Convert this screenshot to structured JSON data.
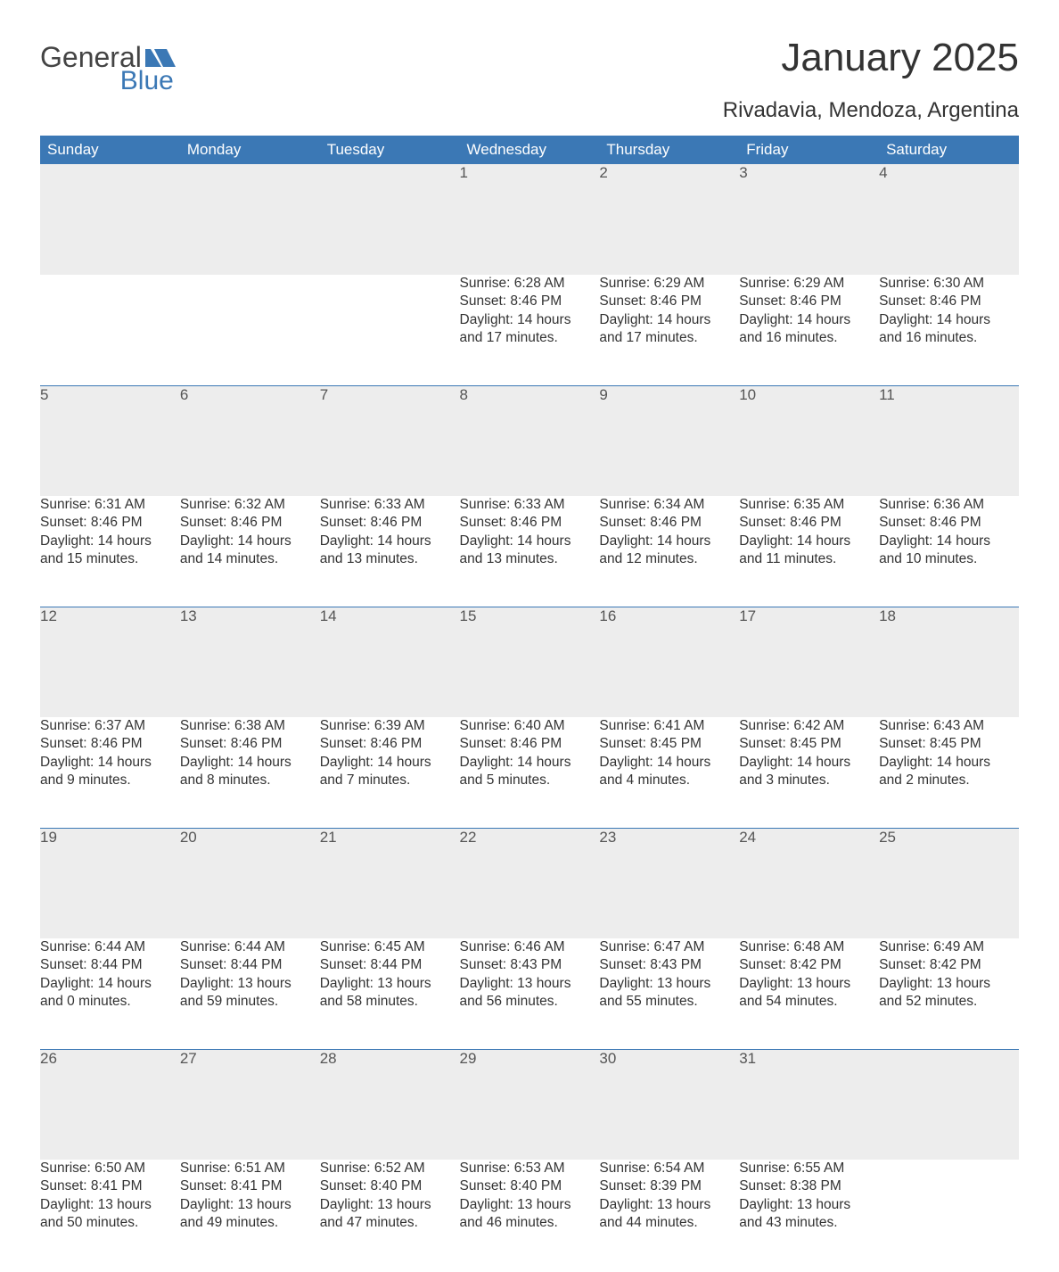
{
  "logo": {
    "text_top": "General",
    "text_bottom": "Blue",
    "accent_color": "#3b78b5",
    "text_color": "#444444"
  },
  "title": "January 2025",
  "location": "Rivadavia, Mendoza, Argentina",
  "colors": {
    "header_bg": "#3b78b5",
    "header_fg": "#ffffff",
    "daynum_bg": "#ededed",
    "border": "#3b78b5",
    "body_text": "#333333",
    "daynum_text": "#555555",
    "page_bg": "#ffffff"
  },
  "weekday_labels": [
    "Sunday",
    "Monday",
    "Tuesday",
    "Wednesday",
    "Thursday",
    "Friday",
    "Saturday"
  ],
  "weeks": [
    [
      null,
      null,
      null,
      {
        "day": "1",
        "sunrise": "6:28 AM",
        "sunset": "8:46 PM",
        "daylight_h": "14",
        "daylight_m": "17"
      },
      {
        "day": "2",
        "sunrise": "6:29 AM",
        "sunset": "8:46 PM",
        "daylight_h": "14",
        "daylight_m": "17"
      },
      {
        "day": "3",
        "sunrise": "6:29 AM",
        "sunset": "8:46 PM",
        "daylight_h": "14",
        "daylight_m": "16"
      },
      {
        "day": "4",
        "sunrise": "6:30 AM",
        "sunset": "8:46 PM",
        "daylight_h": "14",
        "daylight_m": "16"
      }
    ],
    [
      {
        "day": "5",
        "sunrise": "6:31 AM",
        "sunset": "8:46 PM",
        "daylight_h": "14",
        "daylight_m": "15"
      },
      {
        "day": "6",
        "sunrise": "6:32 AM",
        "sunset": "8:46 PM",
        "daylight_h": "14",
        "daylight_m": "14"
      },
      {
        "day": "7",
        "sunrise": "6:33 AM",
        "sunset": "8:46 PM",
        "daylight_h": "14",
        "daylight_m": "13"
      },
      {
        "day": "8",
        "sunrise": "6:33 AM",
        "sunset": "8:46 PM",
        "daylight_h": "14",
        "daylight_m": "13"
      },
      {
        "day": "9",
        "sunrise": "6:34 AM",
        "sunset": "8:46 PM",
        "daylight_h": "14",
        "daylight_m": "12"
      },
      {
        "day": "10",
        "sunrise": "6:35 AM",
        "sunset": "8:46 PM",
        "daylight_h": "14",
        "daylight_m": "11"
      },
      {
        "day": "11",
        "sunrise": "6:36 AM",
        "sunset": "8:46 PM",
        "daylight_h": "14",
        "daylight_m": "10"
      }
    ],
    [
      {
        "day": "12",
        "sunrise": "6:37 AM",
        "sunset": "8:46 PM",
        "daylight_h": "14",
        "daylight_m": "9"
      },
      {
        "day": "13",
        "sunrise": "6:38 AM",
        "sunset": "8:46 PM",
        "daylight_h": "14",
        "daylight_m": "8"
      },
      {
        "day": "14",
        "sunrise": "6:39 AM",
        "sunset": "8:46 PM",
        "daylight_h": "14",
        "daylight_m": "7"
      },
      {
        "day": "15",
        "sunrise": "6:40 AM",
        "sunset": "8:46 PM",
        "daylight_h": "14",
        "daylight_m": "5"
      },
      {
        "day": "16",
        "sunrise": "6:41 AM",
        "sunset": "8:45 PM",
        "daylight_h": "14",
        "daylight_m": "4"
      },
      {
        "day": "17",
        "sunrise": "6:42 AM",
        "sunset": "8:45 PM",
        "daylight_h": "14",
        "daylight_m": "3"
      },
      {
        "day": "18",
        "sunrise": "6:43 AM",
        "sunset": "8:45 PM",
        "daylight_h": "14",
        "daylight_m": "2"
      }
    ],
    [
      {
        "day": "19",
        "sunrise": "6:44 AM",
        "sunset": "8:44 PM",
        "daylight_h": "14",
        "daylight_m": "0"
      },
      {
        "day": "20",
        "sunrise": "6:44 AM",
        "sunset": "8:44 PM",
        "daylight_h": "13",
        "daylight_m": "59"
      },
      {
        "day": "21",
        "sunrise": "6:45 AM",
        "sunset": "8:44 PM",
        "daylight_h": "13",
        "daylight_m": "58"
      },
      {
        "day": "22",
        "sunrise": "6:46 AM",
        "sunset": "8:43 PM",
        "daylight_h": "13",
        "daylight_m": "56"
      },
      {
        "day": "23",
        "sunrise": "6:47 AM",
        "sunset": "8:43 PM",
        "daylight_h": "13",
        "daylight_m": "55"
      },
      {
        "day": "24",
        "sunrise": "6:48 AM",
        "sunset": "8:42 PM",
        "daylight_h": "13",
        "daylight_m": "54"
      },
      {
        "day": "25",
        "sunrise": "6:49 AM",
        "sunset": "8:42 PM",
        "daylight_h": "13",
        "daylight_m": "52"
      }
    ],
    [
      {
        "day": "26",
        "sunrise": "6:50 AM",
        "sunset": "8:41 PM",
        "daylight_h": "13",
        "daylight_m": "50"
      },
      {
        "day": "27",
        "sunrise": "6:51 AM",
        "sunset": "8:41 PM",
        "daylight_h": "13",
        "daylight_m": "49"
      },
      {
        "day": "28",
        "sunrise": "6:52 AM",
        "sunset": "8:40 PM",
        "daylight_h": "13",
        "daylight_m": "47"
      },
      {
        "day": "29",
        "sunrise": "6:53 AM",
        "sunset": "8:40 PM",
        "daylight_h": "13",
        "daylight_m": "46"
      },
      {
        "day": "30",
        "sunrise": "6:54 AM",
        "sunset": "8:39 PM",
        "daylight_h": "13",
        "daylight_m": "44"
      },
      {
        "day": "31",
        "sunrise": "6:55 AM",
        "sunset": "8:38 PM",
        "daylight_h": "13",
        "daylight_m": "43"
      },
      null
    ]
  ],
  "labels": {
    "sunrise_prefix": "Sunrise: ",
    "sunset_prefix": "Sunset: ",
    "daylight_prefix": "Daylight: ",
    "hours_word": " hours",
    "and_word": "and ",
    "minutes_word": " minutes."
  }
}
